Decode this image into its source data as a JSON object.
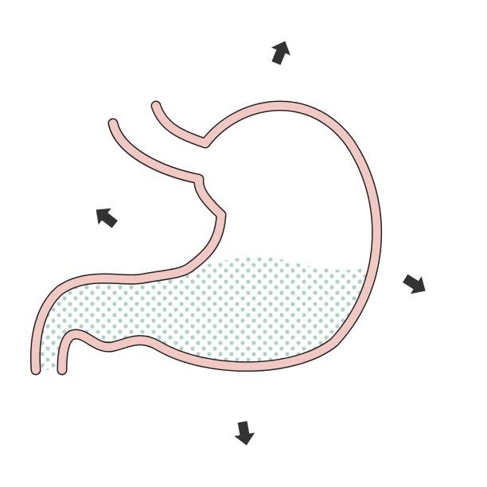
{
  "diagram": {
    "subject": "stomach-icon",
    "arrows": [
      {
        "name": "arrow-up-right-icon",
        "direction": "outward"
      },
      {
        "name": "arrow-up-left-icon",
        "direction": "outward"
      },
      {
        "name": "arrow-right-icon",
        "direction": "outward"
      },
      {
        "name": "arrow-down-icon",
        "direction": "outward"
      }
    ],
    "contents": "dotted-fluid-icon"
  },
  "colors": {
    "wall_fill": "#f2c9c2",
    "wall_outline": "#222222",
    "fluid_dots": "#a9d5c6",
    "arrows": "#333333",
    "background": "#ffffff"
  }
}
